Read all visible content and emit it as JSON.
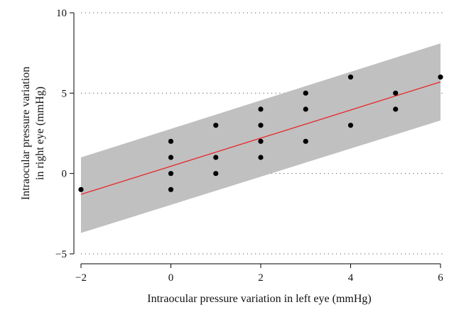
{
  "chart_data": {
    "type": "scatter",
    "title": "",
    "xlabel": "Intraocular pressure variation in left eye (mmHg)",
    "ylabel_lines": [
      "Intraocular pressure variation",
      "in right eye (mmHg)"
    ],
    "xlim": [
      -2,
      6
    ],
    "ylim": [
      -5,
      10
    ],
    "x_ticks": [
      -2,
      0,
      2,
      4,
      6
    ],
    "x_tick_labels": [
      "−2",
      "0",
      "2",
      "4",
      "6"
    ],
    "y_ticks": [
      -5,
      0,
      5,
      10
    ],
    "y_tick_labels": [
      "−5",
      "0",
      "5",
      "10"
    ],
    "grid": "horizontal dotted",
    "points": [
      {
        "x": -2,
        "y": -1
      },
      {
        "x": 0,
        "y": 2
      },
      {
        "x": 0,
        "y": 1
      },
      {
        "x": 0,
        "y": 0
      },
      {
        "x": 0,
        "y": -1
      },
      {
        "x": 1,
        "y": 3
      },
      {
        "x": 1,
        "y": 1
      },
      {
        "x": 1,
        "y": 0
      },
      {
        "x": 2,
        "y": 4
      },
      {
        "x": 2,
        "y": 3
      },
      {
        "x": 2,
        "y": 2
      },
      {
        "x": 2,
        "y": 1
      },
      {
        "x": 3,
        "y": 5
      },
      {
        "x": 3,
        "y": 4
      },
      {
        "x": 3,
        "y": 2
      },
      {
        "x": 4,
        "y": 6
      },
      {
        "x": 4,
        "y": 3
      },
      {
        "x": 5,
        "y": 5
      },
      {
        "x": 5,
        "y": 4
      },
      {
        "x": 6,
        "y": 6
      }
    ],
    "fit_line": {
      "x": [
        -2,
        6
      ],
      "y": [
        -1.3,
        5.7
      ]
    },
    "prediction_band": {
      "x": [
        -2,
        6
      ],
      "upper": [
        1.0,
        8.1
      ],
      "lower": [
        -3.7,
        3.3
      ]
    },
    "colors": {
      "points": "#000000",
      "fit_line": "#e8262a",
      "band": "#c0c0c0",
      "grid": "#555555"
    }
  }
}
